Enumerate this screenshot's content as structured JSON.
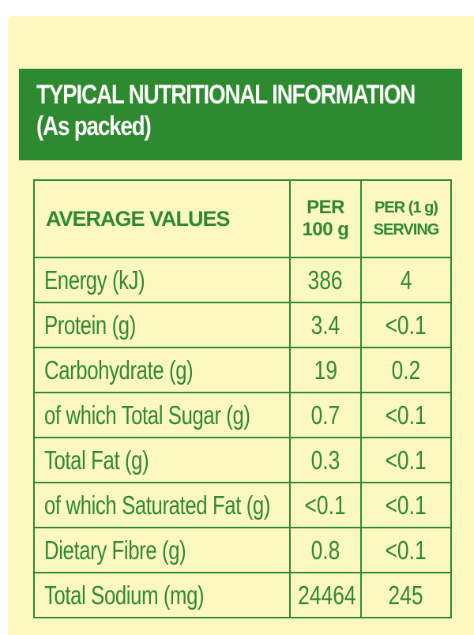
{
  "header": {
    "title": "TYPICAL NUTRITIONAL INFORMATION",
    "subtitle": "(As packed)"
  },
  "table": {
    "columns": {
      "label": "AVERAGE VALUES",
      "per100_line1": "PER",
      "per100_line2": "100 g",
      "serving_line1": "PER (1 g)",
      "serving_line2": "SERVING"
    },
    "rows": [
      {
        "label": "Energy (kJ)",
        "per100": "386",
        "serving": "4"
      },
      {
        "label": "Protein (g)",
        "per100": "3.4",
        "serving": "<0.1"
      },
      {
        "label": "Carbohydrate (g)",
        "per100": "19",
        "serving": "0.2"
      },
      {
        "label": "of which Total Sugar (g)",
        "per100": "0.7",
        "serving": "<0.1"
      },
      {
        "label": "Total Fat (g)",
        "per100": "0.3",
        "serving": "<0.1"
      },
      {
        "label": "of which Saturated Fat (g)",
        "per100": "<0.1",
        "serving": "<0.1"
      },
      {
        "label": "Dietary Fibre (g)",
        "per100": "0.8",
        "serving": "<0.1"
      },
      {
        "label": "Total Sodium (mg)",
        "per100": "24464",
        "serving": "245"
      }
    ]
  },
  "colors": {
    "green": "#2e8a2f",
    "cream": "#fdf7c0",
    "white": "#ffffff"
  }
}
